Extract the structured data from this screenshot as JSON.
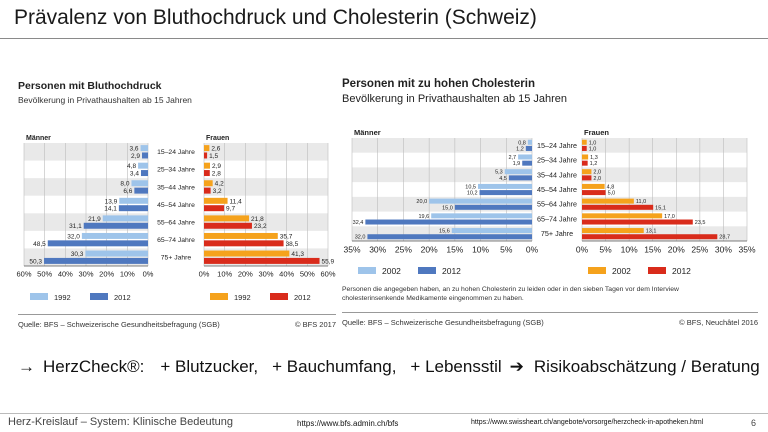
{
  "slide": {
    "title": "Prävalenz von Bluthochdruck und Cholesterin (Schweiz)",
    "herzcheck": {
      "arrow1": "→",
      "brand": "HerzCheck®:",
      "items": [
        "+ Blutzucker,",
        "+ Bauchumfang,",
        "+ Lebensstil"
      ],
      "arrow2": "➔",
      "result": "Risikoabschätzung / Beratung"
    },
    "footer": {
      "left": "Herz-Kreislauf – System:  Klinische Bedeutung",
      "mid": "https://www.bfs.admin.ch/bfs",
      "right": "https://www.swissheart.ch/angebote/vorsorge/herzcheck-in-apotheken.html",
      "page": "6"
    }
  },
  "colors": {
    "men_light": "#9ec4ea",
    "men_dark": "#4f78bf",
    "women_light": "#f5a21c",
    "women_dark": "#d92b1b",
    "band": "#e9e9e9",
    "grid": "#bcbcbc"
  },
  "chart_data": [
    {
      "type": "bar",
      "orientation": "horizontal-butterfly",
      "title": "Personen mit Bluthochdruck",
      "subtitle": "Bevölkerung in Privathaushalten ab 15 Jahren",
      "left_label": "Männer",
      "right_label": "Frauen",
      "categories": [
        "15–24 Jahre",
        "25–34 Jahre",
        "35–44 Jahre",
        "45–54 Jahre",
        "55–64 Jahre",
        "65–74 Jahre",
        "75+ Jahre"
      ],
      "men": [
        {
          "name": "1992",
          "values": [
            3.6,
            4.8,
            8.0,
            13.9,
            21.9,
            32.0,
            30.3
          ]
        },
        {
          "name": "2012",
          "values": [
            2.9,
            3.4,
            6.6,
            14.1,
            31.1,
            48.5,
            50.3
          ]
        }
      ],
      "women": [
        {
          "name": "1992",
          "values": [
            2.6,
            2.9,
            4.2,
            11.4,
            21.8,
            35.7,
            41.3
          ]
        },
        {
          "name": "2012",
          "values": [
            1.5,
            2.8,
            3.2,
            9.7,
            23.2,
            38.5,
            55.9
          ]
        }
      ],
      "value_labels_men": [
        [
          "3,6",
          "4,8",
          "8,0",
          "13,9",
          "21,9",
          "32,0",
          "30,3"
        ],
        [
          "2,9",
          "3,4",
          "6,6",
          "14,1",
          "31,1",
          "48,5",
          "50,3"
        ]
      ],
      "value_labels_women": [
        [
          "2,6",
          "2,9",
          "4,2",
          "11,4",
          "21,8",
          "35,7",
          "41,3"
        ],
        [
          "1,5",
          "2,8",
          "3,2",
          "9,7",
          "23,2",
          "38,5",
          "55,9"
        ]
      ],
      "max": 60,
      "left_ticks": [
        "60%",
        "50%",
        "40%",
        "30%",
        "20%",
        "10%",
        "0%"
      ],
      "right_ticks": [
        "0%",
        "10%",
        "20%",
        "30%",
        "40%",
        "50%",
        "60%"
      ],
      "source": "Quelle: BFS – Schweizerische Gesundheitsbefragung (SGB)",
      "copyright": "© BFS 2017"
    },
    {
      "type": "bar",
      "orientation": "horizontal-butterfly",
      "title": "Personen mit zu hohen Cholesterin",
      "subtitle": "Bevölkerung in Privathaushalten ab 15 Jahren",
      "left_label": "Männer",
      "right_label": "Frauen",
      "categories": [
        "15–24 Jahre",
        "25–34 Jahre",
        "35–44 Jahre",
        "45–54 Jahre",
        "55–64 Jahre",
        "65–74 Jahre",
        "75+ Jahre"
      ],
      "men": [
        {
          "name": "2002",
          "values": [
            0.8,
            2.7,
            5.3,
            10.5,
            20.0,
            19.6,
            15.6
          ]
        },
        {
          "name": "2012",
          "values": [
            1.2,
            1.9,
            4.5,
            10.2,
            15.0,
            32.4,
            32.0
          ]
        }
      ],
      "women": [
        {
          "name": "2002",
          "values": [
            1.0,
            1.3,
            2.0,
            4.8,
            11.0,
            17.0,
            13.1
          ]
        },
        {
          "name": "2012",
          "values": [
            1.0,
            1.2,
            2.0,
            5.0,
            15.1,
            23.5,
            28.7
          ]
        }
      ],
      "value_labels_men": [
        [
          "0,8",
          "2,7",
          "5,3",
          "10,5",
          "20,0",
          "19,6",
          "15,6"
        ],
        [
          "1,2",
          "1,9",
          "4,5",
          "10,2",
          "15,0",
          "32,4",
          "32,0"
        ]
      ],
      "value_labels_women": [
        [
          "1,0",
          "1,3",
          "2,0",
          "4,8",
          "11,0",
          "17,0",
          "13,1"
        ],
        [
          "1,0",
          "1,2",
          "2,0",
          "5,0",
          "15,1",
          "23,5",
          "28,7"
        ]
      ],
      "max": 35,
      "left_ticks": [
        "35%",
        "30%",
        "25%",
        "20%",
        "15%",
        "10%",
        "5%",
        "0%"
      ],
      "right_ticks": [
        "0%",
        "5%",
        "10%",
        "15%",
        "20%",
        "25%",
        "30%",
        "35%"
      ],
      "footnote": "Personen die angegeben haben, an zu hohen Cholesterin zu leiden oder in den sieben Tagen vor dem Interview cholesterinsenkende Medikamente eingenommen zu haben.",
      "source": "Quelle: BFS – Schweizerische Gesundheitsbefragung (SGB)",
      "copyright": "© BFS, Neuchâtel 2016"
    }
  ]
}
